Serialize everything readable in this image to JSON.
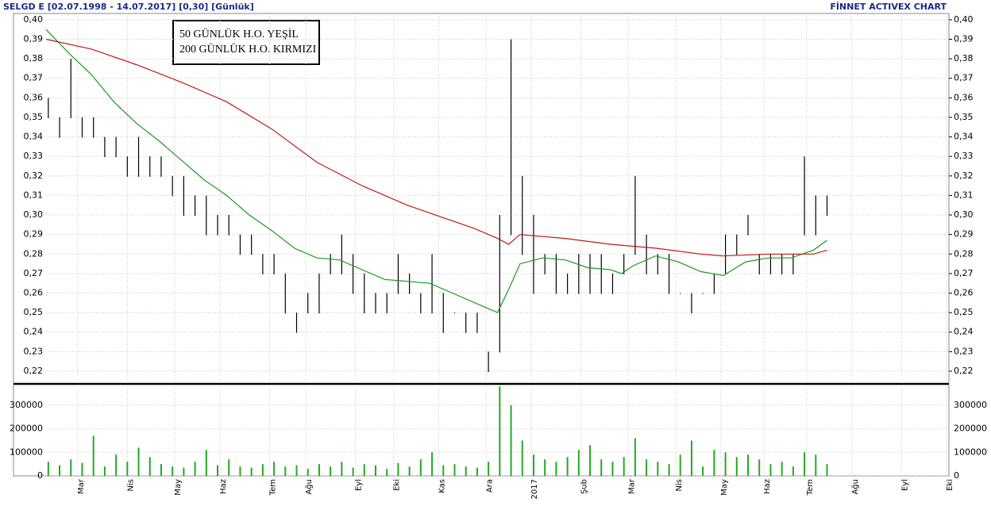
{
  "chart_data": {
    "type": "stock",
    "title": "SELGD E  [02.07.1998 - 14.07.2017]  [0,30]  [Günlük]",
    "source": "FİNNET ACTIVEX CHART",
    "annotations": [
      "50 GÜNLÜK H.O. YEŞİL",
      "200 GÜNLÜK H.O. KIRMIZI"
    ],
    "xlim": [
      0,
      400
    ],
    "xticks": [
      {
        "value": 14,
        "label": "Mar"
      },
      {
        "value": 36,
        "label": "Nis"
      },
      {
        "value": 57,
        "label": "May"
      },
      {
        "value": 77,
        "label": "Haz"
      },
      {
        "value": 99,
        "label": "Tem"
      },
      {
        "value": 115,
        "label": "Ağu"
      },
      {
        "value": 137,
        "label": "Eyl"
      },
      {
        "value": 154,
        "label": "Eki"
      },
      {
        "value": 174,
        "label": "Kas"
      },
      {
        "value": 195,
        "label": "Ara"
      },
      {
        "value": 215,
        "label": "2017"
      },
      {
        "value": 237,
        "label": "Şub"
      },
      {
        "value": 258,
        "label": "Mar"
      },
      {
        "value": 279,
        "label": "Nis"
      },
      {
        "value": 299,
        "label": "May"
      },
      {
        "value": 318,
        "label": "Haz"
      },
      {
        "value": 337,
        "label": "Tem"
      },
      {
        "value": 357,
        "label": "Ağu"
      },
      {
        "value": 379,
        "label": "Eyl"
      },
      {
        "value": 399,
        "label": "Eki"
      }
    ],
    "ylim": [
      0.2139,
      0.4032
    ],
    "yticks": [
      {
        "value": 0.22,
        "label": "0,22"
      },
      {
        "value": 0.23,
        "label": "0,23"
      },
      {
        "value": 0.24,
        "label": "0,24"
      },
      {
        "value": 0.25,
        "label": "0,25"
      },
      {
        "value": 0.26,
        "label": "0,26"
      },
      {
        "value": 0.27,
        "label": "0,27"
      },
      {
        "value": 0.28,
        "label": "0,28"
      },
      {
        "value": 0.29,
        "label": "0,29"
      },
      {
        "value": 0.3,
        "label": "0,30"
      },
      {
        "value": 0.31,
        "label": "0,31"
      },
      {
        "value": 0.32,
        "label": "0,32"
      },
      {
        "value": 0.33,
        "label": "0,33"
      },
      {
        "value": 0.34,
        "label": "0,34"
      },
      {
        "value": 0.35,
        "label": "0,35"
      },
      {
        "value": 0.36,
        "label": "0,36"
      },
      {
        "value": 0.37,
        "label": "0,37"
      },
      {
        "value": 0.38,
        "label": "0,38"
      },
      {
        "value": 0.39,
        "label": "0,39"
      },
      {
        "value": 0.4,
        "label": "0,40"
      }
    ],
    "bar_color": "#000000",
    "x": [
      1,
      6,
      11,
      16,
      21,
      26,
      31,
      36,
      41,
      46,
      51,
      56,
      61,
      66,
      71,
      76,
      81,
      86,
      91,
      96,
      101,
      106,
      111,
      116,
      121,
      126,
      131,
      136,
      141,
      146,
      151,
      156,
      161,
      166,
      171,
      176,
      181,
      186,
      191,
      196,
      201,
      206,
      211,
      216,
      221,
      226,
      231,
      236,
      241,
      246,
      251,
      256,
      261,
      266,
      271,
      276,
      281,
      286,
      291,
      296,
      301,
      306,
      311,
      316,
      321,
      326,
      331,
      336,
      341,
      346
    ],
    "high": [
      0.36,
      0.35,
      0.38,
      0.35,
      0.35,
      0.34,
      0.34,
      0.33,
      0.34,
      0.33,
      0.33,
      0.32,
      0.32,
      0.31,
      0.31,
      0.3,
      0.3,
      0.29,
      0.29,
      0.28,
      0.28,
      0.27,
      0.25,
      0.26,
      0.27,
      0.28,
      0.29,
      0.28,
      0.27,
      0.26,
      0.26,
      0.28,
      0.27,
      0.26,
      0.28,
      0.26,
      0.25,
      0.25,
      0.25,
      0.23,
      0.3,
      0.39,
      0.32,
      0.3,
      0.28,
      0.28,
      0.27,
      0.28,
      0.28,
      0.28,
      0.27,
      0.28,
      0.32,
      0.29,
      0.28,
      0.28,
      0.26,
      0.26,
      0.26,
      0.27,
      0.29,
      0.29,
      0.3,
      0.28,
      0.28,
      0.28,
      0.28,
      0.33,
      0.31,
      0.31
    ],
    "low": [
      0.35,
      0.34,
      0.35,
      0.34,
      0.34,
      0.33,
      0.33,
      0.32,
      0.32,
      0.32,
      0.32,
      0.31,
      0.3,
      0.3,
      0.29,
      0.29,
      0.29,
      0.28,
      0.28,
      0.27,
      0.27,
      0.25,
      0.24,
      0.25,
      0.25,
      0.27,
      0.27,
      0.26,
      0.25,
      0.25,
      0.25,
      0.26,
      0.26,
      0.25,
      0.25,
      0.24,
      0.25,
      0.24,
      0.24,
      0.22,
      0.23,
      0.29,
      0.28,
      0.26,
      0.27,
      0.26,
      0.26,
      0.26,
      0.26,
      0.26,
      0.26,
      0.27,
      0.28,
      0.27,
      0.27,
      0.26,
      0.26,
      0.25,
      0.26,
      0.26,
      0.27,
      0.28,
      0.29,
      0.27,
      0.27,
      0.27,
      0.27,
      0.29,
      0.29,
      0.3
    ],
    "series": [
      {
        "name": "50 GÜNLÜK H.O.",
        "color": "#1a9a1a",
        "x": [
          0,
          10,
          20,
          30,
          40,
          50,
          60,
          70,
          80,
          90,
          100,
          110,
          120,
          130,
          140,
          150,
          160,
          170,
          180,
          190,
          200,
          205,
          210,
          220,
          230,
          240,
          250,
          255,
          260,
          270,
          280,
          290,
          300,
          310,
          320,
          330,
          340,
          346
        ],
        "values": [
          0.395,
          0.383,
          0.372,
          0.358,
          0.347,
          0.338,
          0.328,
          0.318,
          0.31,
          0.3,
          0.292,
          0.283,
          0.278,
          0.277,
          0.272,
          0.267,
          0.266,
          0.265,
          0.26,
          0.255,
          0.25,
          0.262,
          0.275,
          0.278,
          0.277,
          0.273,
          0.272,
          0.27,
          0.274,
          0.279,
          0.276,
          0.271,
          0.269,
          0.276,
          0.278,
          0.278,
          0.282,
          0.287
        ]
      },
      {
        "name": "200 GÜNLÜK H.O.",
        "color": "#c01818",
        "x": [
          0,
          20,
          40,
          60,
          80,
          100,
          120,
          140,
          160,
          180,
          190,
          200,
          205,
          210,
          230,
          250,
          270,
          290,
          300,
          320,
          340,
          346
        ],
        "values": [
          0.39,
          0.385,
          0.377,
          0.368,
          0.358,
          0.344,
          0.327,
          0.315,
          0.305,
          0.297,
          0.293,
          0.288,
          0.285,
          0.29,
          0.288,
          0.285,
          0.283,
          0.28,
          0.279,
          0.28,
          0.28,
          0.282
        ]
      }
    ],
    "volume": {
      "color": "#22aa22",
      "ylim": [
        0,
        387000
      ],
      "yticks": [
        0,
        100000,
        200000,
        300000
      ],
      "values": [
        60000,
        45000,
        70000,
        55000,
        170000,
        40000,
        90000,
        60000,
        120000,
        80000,
        50000,
        40000,
        35000,
        60000,
        110000,
        45000,
        70000,
        40000,
        35000,
        50000,
        60000,
        40000,
        45000,
        30000,
        50000,
        40000,
        60000,
        35000,
        50000,
        45000,
        30000,
        55000,
        40000,
        70000,
        100000,
        45000,
        50000,
        40000,
        35000,
        60000,
        380000,
        300000,
        150000,
        90000,
        70000,
        60000,
        80000,
        110000,
        130000,
        70000,
        60000,
        80000,
        160000,
        70000,
        60000,
        50000,
        90000,
        150000,
        40000,
        110000,
        100000,
        80000,
        90000,
        70000,
        50000,
        60000,
        40000,
        100000,
        90000,
        50000
      ]
    }
  }
}
